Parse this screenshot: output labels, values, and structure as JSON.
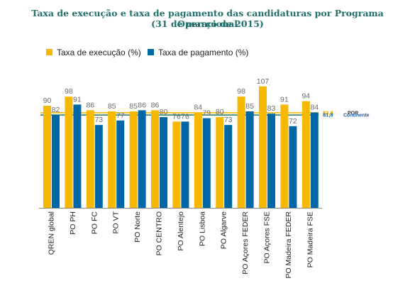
{
  "chart_data": {
    "type": "bar",
    "title": "Taxa de execução e taxa de pagamento das candidaturas por Programa Operacional",
    "subtitle": "(31 de março de 2015)",
    "categories": [
      "QREN global",
      "PO PH",
      "PO FC",
      "PO VT",
      "PO Norte",
      "PO CENTRO",
      "PO Alentejo",
      "PO Lisboa",
      "PO Algarve",
      "PO Açores FEDER",
      "PO Açores FSE",
      "PO Madeira FEDER",
      "PO Madeira FSE"
    ],
    "series": [
      {
        "name": "Taxa de execução (%)",
        "color": "#f6b800",
        "values": [
          90,
          98,
          86,
          85,
          85,
          86,
          76,
          84,
          80,
          98,
          107,
          91,
          94
        ]
      },
      {
        "name": "Taxa de pagamento (%)",
        "color": "#0067a6",
        "values": [
          82,
          91,
          73,
          77,
          86,
          80,
          76,
          79,
          73,
          85,
          83,
          72,
          84
        ]
      }
    ],
    "reference_lines": [
      {
        "value_label": "83,8",
        "name": "POR",
        "value": 83.8,
        "color": "#f6b800"
      },
      {
        "value_label": "81,8",
        "name": "Continente",
        "value": 81.8,
        "color": "#1a7a5a"
      }
    ],
    "ylim": [
      0,
      115
    ],
    "grid": false,
    "legend_position": "top-left"
  }
}
